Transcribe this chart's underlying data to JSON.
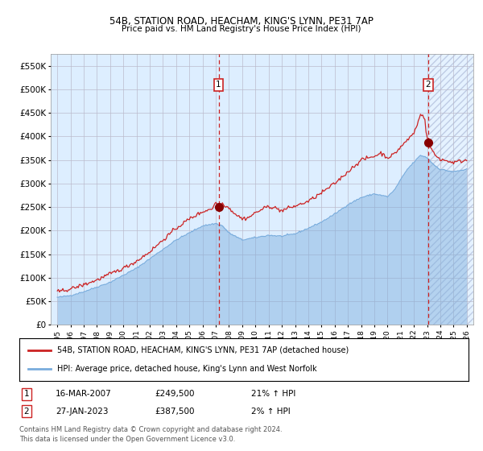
{
  "title1": "54B, STATION ROAD, HEACHAM, KING'S LYNN, PE31 7AP",
  "title2": "Price paid vs. HM Land Registry's House Price Index (HPI)",
  "ylim": [
    0,
    575000
  ],
  "yticks": [
    0,
    50000,
    100000,
    150000,
    200000,
    250000,
    300000,
    350000,
    400000,
    450000,
    500000,
    550000
  ],
  "ytick_labels": [
    "£0",
    "£50K",
    "£100K",
    "£150K",
    "£200K",
    "£250K",
    "£300K",
    "£350K",
    "£400K",
    "£450K",
    "£500K",
    "£550K"
  ],
  "xlim_start": 1994.5,
  "xlim_end": 2026.5,
  "xtick_years": [
    1995,
    1996,
    1997,
    1998,
    1999,
    2000,
    2001,
    2002,
    2003,
    2004,
    2005,
    2006,
    2007,
    2008,
    2009,
    2010,
    2011,
    2012,
    2013,
    2014,
    2015,
    2016,
    2017,
    2018,
    2019,
    2020,
    2021,
    2022,
    2023,
    2024,
    2025,
    2026
  ],
  "hpi_color": "#7aaddd",
  "price_color": "#cc2222",
  "marker_color": "#880000",
  "vline_color": "#cc2222",
  "bg_color": "#ddeeff",
  "grid_color": "#bbbbcc",
  "legend_label_price": "54B, STATION ROAD, HEACHAM, KING'S LYNN, PE31 7AP (detached house)",
  "legend_label_hpi": "HPI: Average price, detached house, King's Lynn and West Norfolk",
  "sale1_year": 2007.21,
  "sale1_price": 249500,
  "sale1_label": "16-MAR-2007",
  "sale1_pct": "21% ↑ HPI",
  "sale2_year": 2023.08,
  "sale2_price": 387500,
  "sale2_label": "27-JAN-2023",
  "sale2_pct": "2% ↑ HPI",
  "footnote_line1": "Contains HM Land Registry data © Crown copyright and database right 2024.",
  "footnote_line2": "This data is licensed under the Open Government Licence v3.0."
}
